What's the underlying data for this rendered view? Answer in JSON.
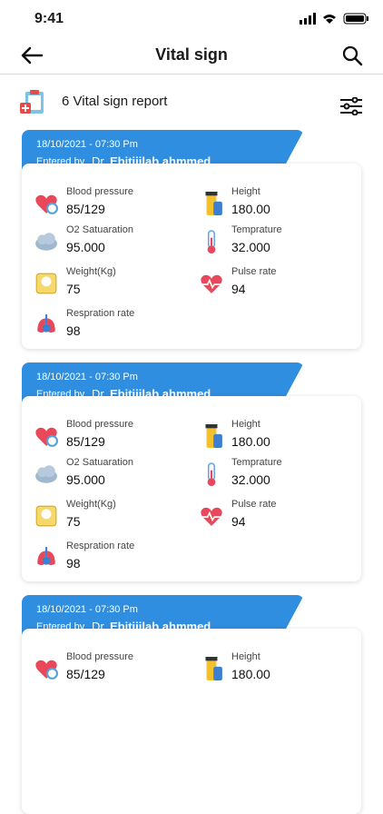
{
  "status_bar": {
    "time": "9:41"
  },
  "header": {
    "title": "Vital sign"
  },
  "report": {
    "text": "6 Vital sign report"
  },
  "cards": [
    {
      "date": "18/10/2021 - 07:30 Pm",
      "entered_by": "Entered by",
      "doctor_prefix": "Dr",
      "doctor_name": "Ebitijilab ahmmed",
      "vitals": [
        {
          "label": "Blood pressure",
          "value": "85/129"
        },
        {
          "label": "Height",
          "value": "180.00"
        },
        {
          "label": "O2 Satuaration",
          "value": "95.000"
        },
        {
          "label": "Temprature",
          "value": "32.000"
        },
        {
          "label": "Weight(Kg)",
          "value": "75"
        },
        {
          "label": "Pulse rate",
          "value": "94"
        },
        {
          "label": "Respration rate",
          "value": "98"
        }
      ]
    },
    {
      "date": "18/10/2021 - 07:30 Pm",
      "entered_by": "Entered by",
      "doctor_prefix": "Dr",
      "doctor_name": "Ebitijilab ahmmed",
      "vitals": [
        {
          "label": "Blood pressure",
          "value": "85/129"
        },
        {
          "label": "Height",
          "value": "180.00"
        },
        {
          "label": "O2 Satuaration",
          "value": "95.000"
        },
        {
          "label": "Temprature",
          "value": "32.000"
        },
        {
          "label": "Weight(Kg)",
          "value": "75"
        },
        {
          "label": "Pulse rate",
          "value": "94"
        },
        {
          "label": "Respration rate",
          "value": "98"
        }
      ]
    },
    {
      "date": "18/10/2021 - 07:30 Pm",
      "entered_by": "Entered by",
      "doctor_prefix": "Dr",
      "doctor_name": "Ebitijilab ahmmed",
      "vitals": [
        {
          "label": "Blood pressure",
          "value": "85/129"
        },
        {
          "label": "Height",
          "value": "180.00"
        }
      ]
    }
  ]
}
